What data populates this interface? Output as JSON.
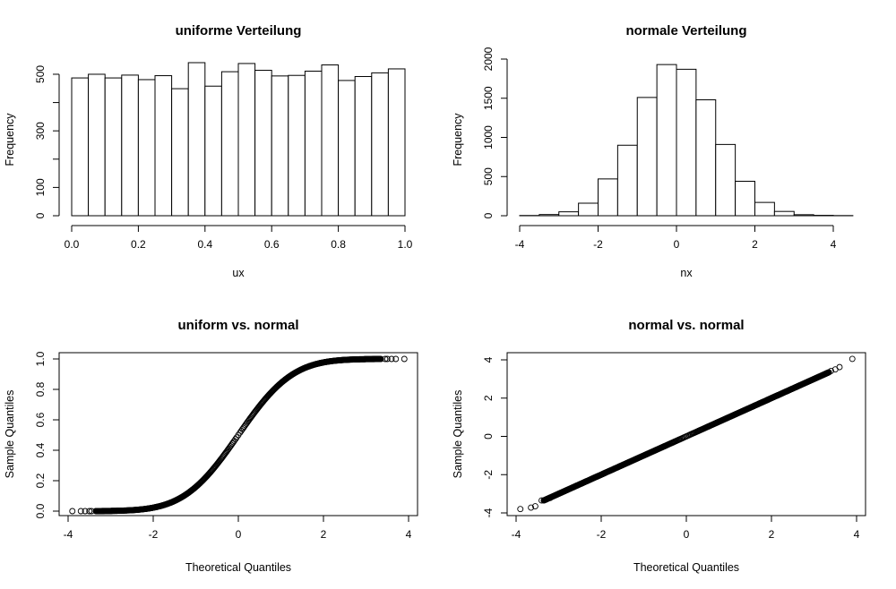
{
  "chart_data": [
    {
      "type": "bar",
      "title": "uniforme Verteilung",
      "xlabel": "ux",
      "ylabel": "Frequency",
      "bins": {
        "start": 0.0,
        "width": 0.05
      },
      "values": [
        487,
        500,
        487,
        497,
        481,
        495,
        449,
        541,
        458,
        509,
        538,
        514,
        494,
        496,
        511,
        533,
        478,
        492,
        505,
        519
      ],
      "xlim": [
        0,
        1
      ],
      "ylim": [
        0,
        541
      ],
      "xticks": [
        0.0,
        0.2,
        0.4,
        0.6,
        0.8,
        1.0
      ],
      "xtick_labels": [
        "0.0",
        "0.2",
        "0.4",
        "0.6",
        "0.8",
        "1.0"
      ],
      "yticks": [
        0,
        100,
        200,
        300,
        400,
        500
      ],
      "ytick_labels": [
        "0",
        "100",
        "",
        "300",
        "",
        "500"
      ]
    },
    {
      "type": "bar",
      "title": "normale Verteilung",
      "xlabel": "nx",
      "ylabel": "Frequency",
      "bins": {
        "start": -4.0,
        "width": 0.5
      },
      "values": [
        3,
        15,
        50,
        160,
        470,
        900,
        1510,
        1930,
        1870,
        1480,
        910,
        440,
        170,
        55,
        13,
        5,
        2
      ],
      "xlim": [
        -4,
        4
      ],
      "ylim": [
        0,
        2000
      ],
      "xticks": [
        -4,
        -2,
        0,
        2,
        4
      ],
      "xtick_labels": [
        "-4",
        "-2",
        "0",
        "2",
        "4"
      ],
      "yticks": [
        0,
        500,
        1000,
        1500,
        2000
      ],
      "ytick_labels": [
        "0",
        "500",
        "1000",
        "1500",
        "2000"
      ]
    },
    {
      "type": "scatter",
      "curve": "normal-cdf",
      "title": "uniform vs. normal",
      "xlabel": "Theoretical Quantiles",
      "ylabel": "Sample Quantiles",
      "x_range": [
        -3.9,
        3.9
      ],
      "points": [
        [
          -3.9,
          0.0
        ],
        [
          -3.7,
          0.0
        ],
        [
          -3.6,
          0.0
        ],
        [
          -3.5,
          0.0
        ],
        [
          -3.45,
          0.0
        ],
        [
          3.45,
          1.0
        ],
        [
          3.5,
          1.0
        ],
        [
          3.6,
          1.0
        ],
        [
          3.7,
          1.0
        ],
        [
          3.9,
          1.0
        ]
      ],
      "xlim": [
        -4,
        4
      ],
      "ylim": [
        0,
        1
      ],
      "xticks": [
        -4,
        -2,
        0,
        2,
        4
      ],
      "xtick_labels": [
        "-4",
        "-2",
        "0",
        "2",
        "4"
      ],
      "yticks": [
        0.0,
        0.2,
        0.4,
        0.6,
        0.8,
        1.0
      ],
      "ytick_labels": [
        "0.0",
        "0.2",
        "0.4",
        "0.6",
        "0.8",
        "1.0"
      ]
    },
    {
      "type": "scatter",
      "curve": "identity",
      "title": "normal vs. normal",
      "xlabel": "Theoretical Quantiles",
      "ylabel": "Sample Quantiles",
      "x_range": [
        -3.9,
        3.9
      ],
      "points": [
        [
          -3.9,
          -3.8
        ],
        [
          -3.65,
          -3.72
        ],
        [
          -3.55,
          -3.65
        ],
        [
          -3.4,
          -3.35
        ],
        [
          -3.3,
          -3.3
        ],
        [
          -3.2,
          -3.22
        ],
        [
          3.2,
          3.2
        ],
        [
          3.3,
          3.3
        ],
        [
          3.4,
          3.42
        ],
        [
          3.5,
          3.5
        ],
        [
          3.6,
          3.62
        ],
        [
          3.9,
          4.05
        ]
      ],
      "xlim": [
        -4,
        4
      ],
      "ylim": [
        -4,
        4
      ],
      "xticks": [
        -4,
        -2,
        0,
        2,
        4
      ],
      "xtick_labels": [
        "-4",
        "-2",
        "0",
        "2",
        "4"
      ],
      "yticks": [
        -4,
        -2,
        0,
        2,
        4
      ],
      "ytick_labels": [
        "-4",
        "-2",
        "0",
        "2",
        "4"
      ]
    }
  ]
}
